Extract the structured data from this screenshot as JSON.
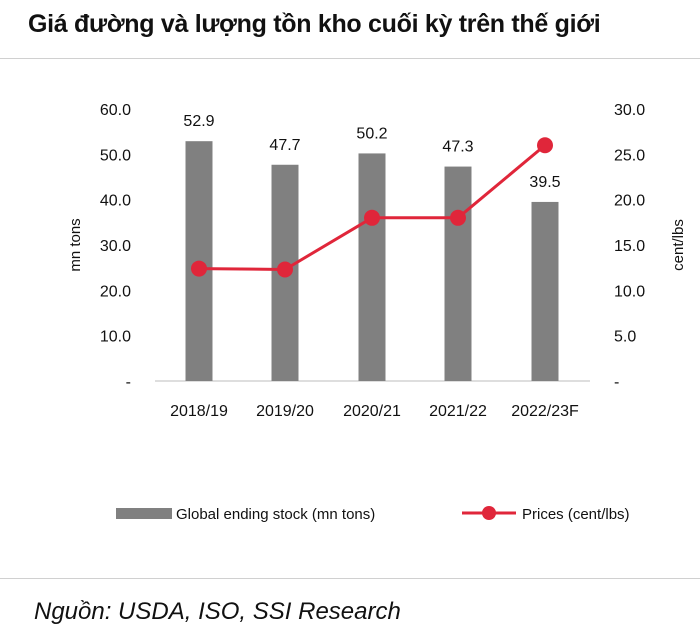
{
  "title": "Giá đường và lượng tồn kho cuối kỳ trên thế giới",
  "source": "Nguồn: USDA, ISO, SSI Research",
  "chart_data": {
    "type": "bar+line",
    "categories": [
      "2018/19",
      "2019/20",
      "2020/21",
      "2021/22",
      "2022/23F"
    ],
    "series": [
      {
        "name": "Global ending stock (mn tons)",
        "type": "bar",
        "axis": "left",
        "values": [
          52.9,
          47.7,
          50.2,
          47.3,
          39.5
        ],
        "labels": [
          "52.9",
          "47.7",
          "50.2",
          "47.3",
          "39.5"
        ],
        "color": "#808080"
      },
      {
        "name": "Prices (cent/lbs)",
        "type": "line",
        "axis": "right",
        "values": [
          12.4,
          12.3,
          18.0,
          18.0,
          26.0
        ],
        "color": "#e0263a"
      }
    ],
    "y_left": {
      "label": "mn tons",
      "range": [
        0,
        60
      ],
      "ticks": [
        {
          "value": 0,
          "label": "-"
        },
        {
          "value": 10,
          "label": "10.0"
        },
        {
          "value": 20,
          "label": "20.0"
        },
        {
          "value": 30,
          "label": "30.0"
        },
        {
          "value": 40,
          "label": "40.0"
        },
        {
          "value": 50,
          "label": "50.0"
        },
        {
          "value": 60,
          "label": "60.0"
        }
      ]
    },
    "y_right": {
      "label": "cent/lbs",
      "range": [
        0,
        30
      ],
      "ticks": [
        {
          "value": 0,
          "label": "-"
        },
        {
          "value": 5,
          "label": "5.0"
        },
        {
          "value": 10,
          "label": "10.0"
        },
        {
          "value": 15,
          "label": "15.0"
        },
        {
          "value": 20,
          "label": "20.0"
        },
        {
          "value": 25,
          "label": "25.0"
        },
        {
          "value": 30,
          "label": "30.0"
        }
      ]
    },
    "grid": false,
    "legend_position": "bottom"
  }
}
